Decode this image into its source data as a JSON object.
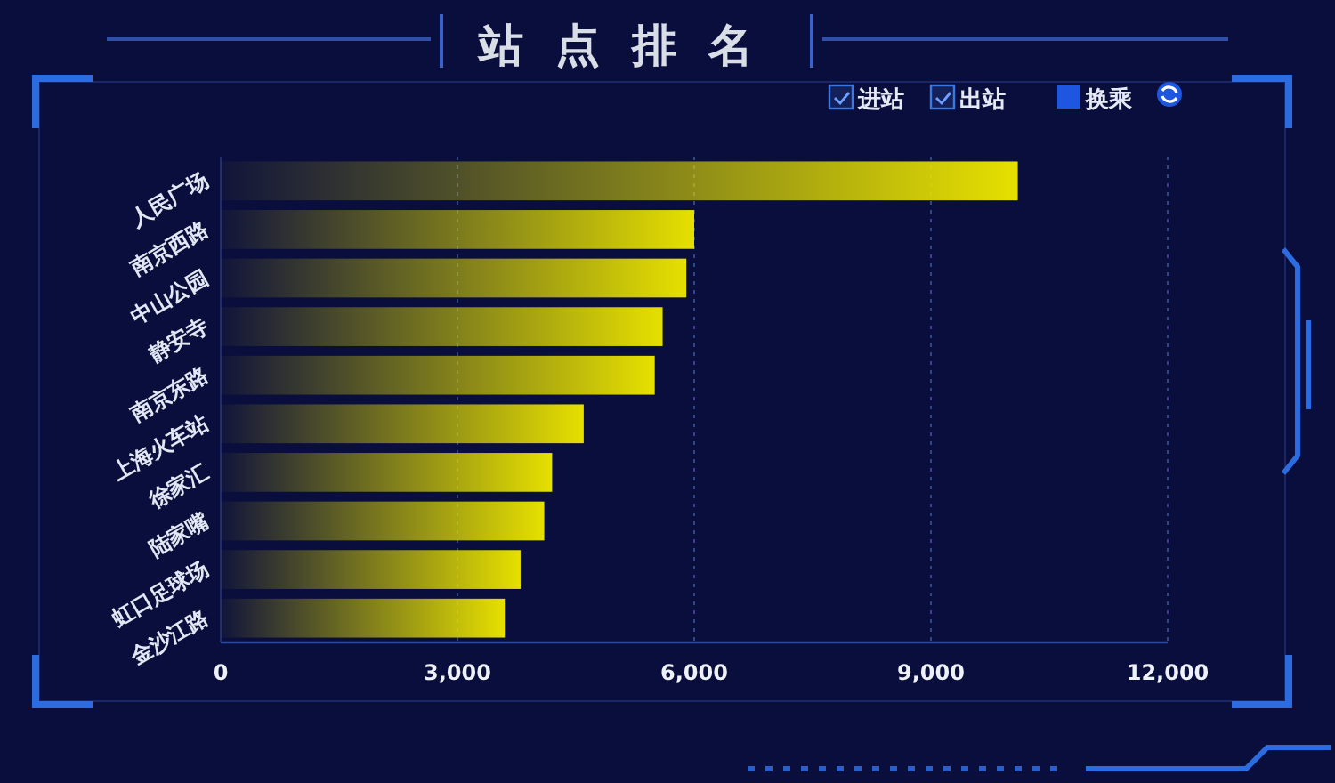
{
  "chart_data": {
    "type": "bar",
    "orientation": "horizontal",
    "title": "站点排名",
    "categories": [
      "人民广场",
      "南京西路",
      "中山公园",
      "静安寺",
      "南京东路",
      "上海火车站",
      "徐家汇",
      "陆家嘴",
      "虹口足球场",
      "金沙江路"
    ],
    "values": [
      10100,
      6000,
      5900,
      5600,
      5500,
      4600,
      4200,
      4100,
      3800,
      3600
    ],
    "color": "#e6e000",
    "xlim": [
      0,
      12000
    ],
    "xticks": [
      0,
      {
        "value": 3000,
        "label": "3,000"
      },
      {
        "value": 6000,
        "label": "6,000"
      },
      {
        "value": 9000,
        "label": "9,000"
      },
      {
        "value": 12000,
        "label": "12,000"
      }
    ],
    "grid": "x",
    "annotations": [
      "进站",
      "出站",
      "换乘"
    ]
  }
}
